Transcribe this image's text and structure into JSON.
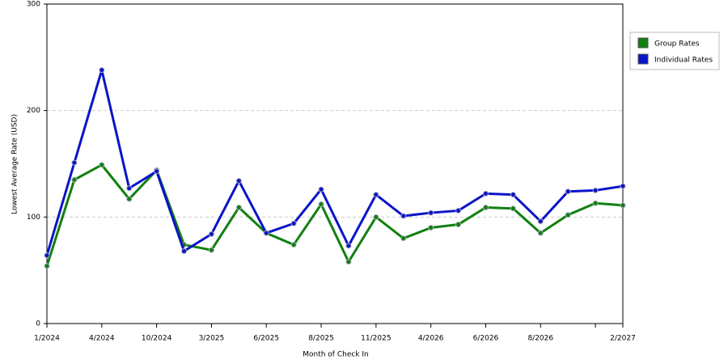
{
  "chart_data": {
    "type": "line",
    "x_label": "Month of Check In",
    "y_label": "Lowest Average Rate (USD)",
    "categories": [
      "1/2024",
      null,
      "4/2024",
      null,
      "10/2024",
      null,
      "3/2025",
      null,
      "6/2025",
      null,
      "8/2025",
      null,
      "11/2025",
      null,
      "4/2026",
      null,
      "6/2026",
      null,
      "8/2026",
      null,
      null,
      "2/2027"
    ],
    "series": [
      {
        "name": "Group Rates",
        "color": "#108010",
        "values": [
          54,
          135,
          149,
          117,
          144,
          74,
          69,
          109,
          85,
          74,
          112,
          58,
          100,
          80,
          90,
          93,
          109,
          108,
          85,
          102,
          113,
          111
        ]
      },
      {
        "name": "Individual Rates",
        "color": "#0a14c8",
        "values": [
          64,
          151,
          238,
          127,
          143,
          68,
          84,
          134,
          85,
          94,
          126,
          73,
          121,
          101,
          104,
          106,
          122,
          121,
          96,
          124,
          125,
          129
        ]
      }
    ],
    "ylim": [
      0,
      300
    ],
    "yticks": [
      0,
      100,
      200,
      300
    ],
    "grid": true,
    "legend": "right"
  }
}
